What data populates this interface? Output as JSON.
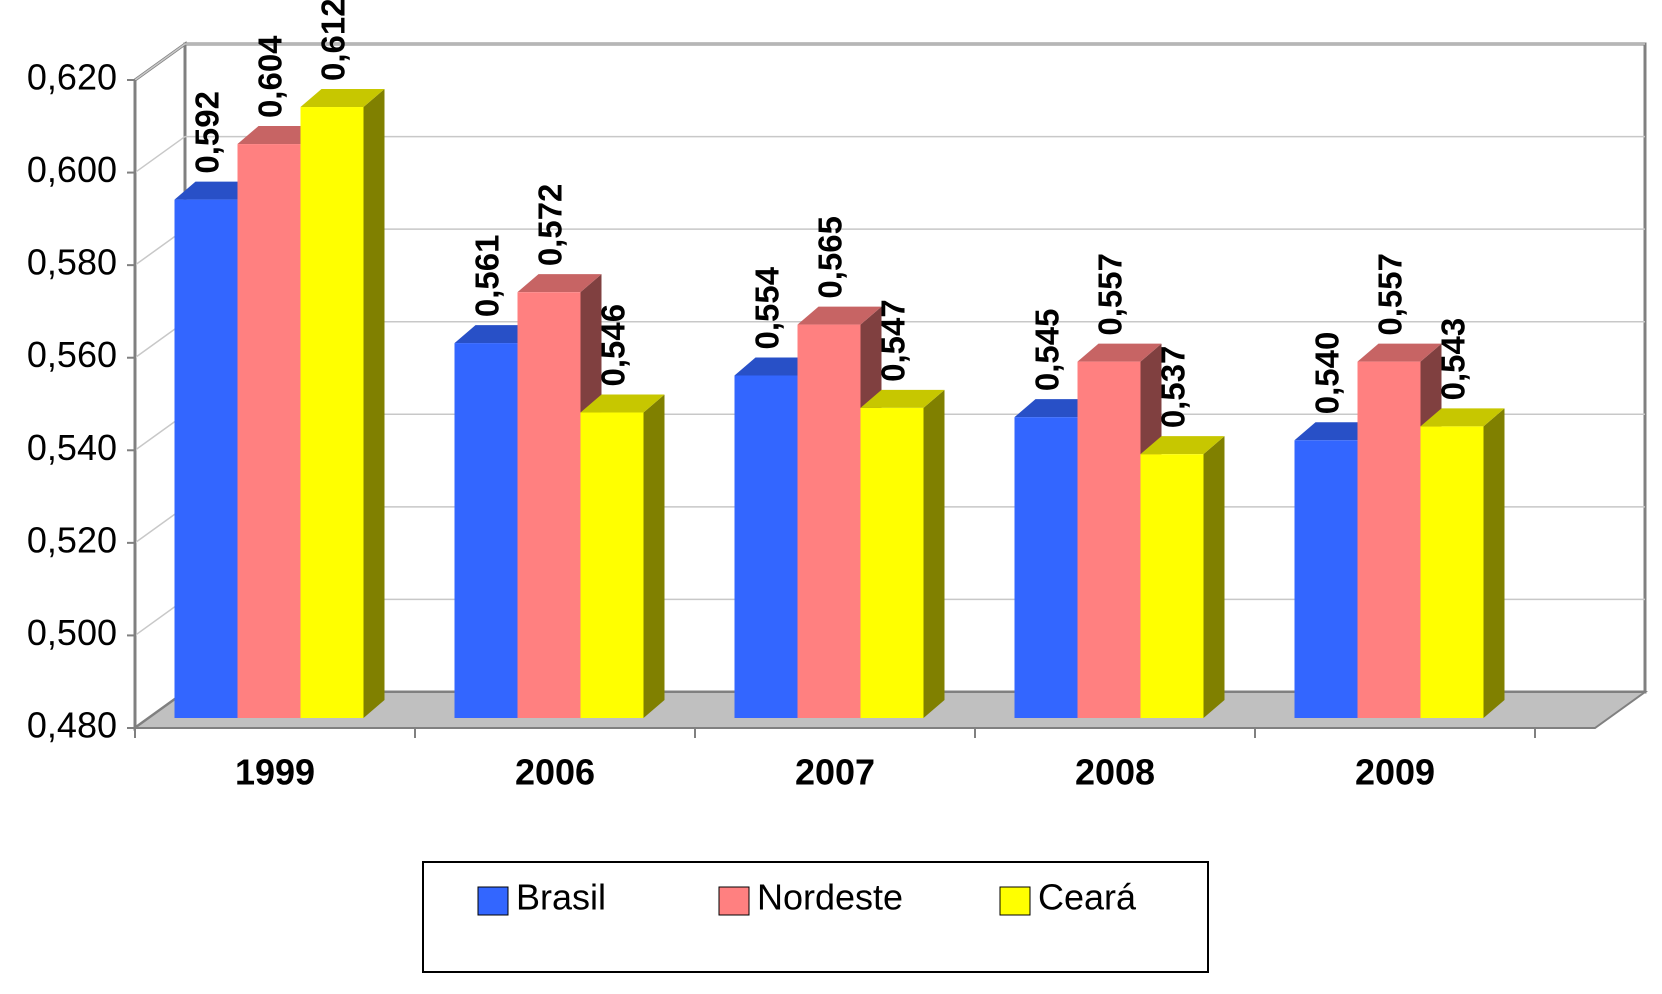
{
  "chart_data": {
    "type": "bar3d",
    "categories": [
      "1999",
      "2006",
      "2007",
      "2008",
      "2009"
    ],
    "series": [
      {
        "name": "Brasil",
        "color": "#3366ff",
        "values": [
          0.592,
          0.561,
          0.554,
          0.545,
          0.54
        ],
        "value_labels": [
          "0,592",
          "0,561",
          "0,554",
          "0,545",
          "0,540"
        ]
      },
      {
        "name": "Nordeste",
        "color": "#ff8080",
        "values": [
          0.604,
          0.572,
          0.565,
          0.557,
          0.557
        ],
        "value_labels": [
          "0,604",
          "0,572",
          "0,565",
          "0,557",
          "0,557"
        ]
      },
      {
        "name": "Ceará",
        "color": "#ffff00",
        "values": [
          0.612,
          0.546,
          0.547,
          0.537,
          0.543
        ],
        "value_labels": [
          "0,612",
          "0,546",
          "0,547",
          "0,537",
          "0,543"
        ]
      }
    ],
    "ylim": [
      0.48,
      0.62
    ],
    "yticks": [
      {
        "value": 0.48,
        "label": "0,480"
      },
      {
        "value": 0.5,
        "label": "0,500"
      },
      {
        "value": 0.52,
        "label": "0,520"
      },
      {
        "value": 0.54,
        "label": "0,540"
      },
      {
        "value": 0.56,
        "label": "0,560"
      },
      {
        "value": 0.58,
        "label": "0,580"
      },
      {
        "value": 0.6,
        "label": "0,600"
      },
      {
        "value": 0.62,
        "label": "0,620"
      }
    ],
    "grid": true,
    "legend": "bottom"
  }
}
